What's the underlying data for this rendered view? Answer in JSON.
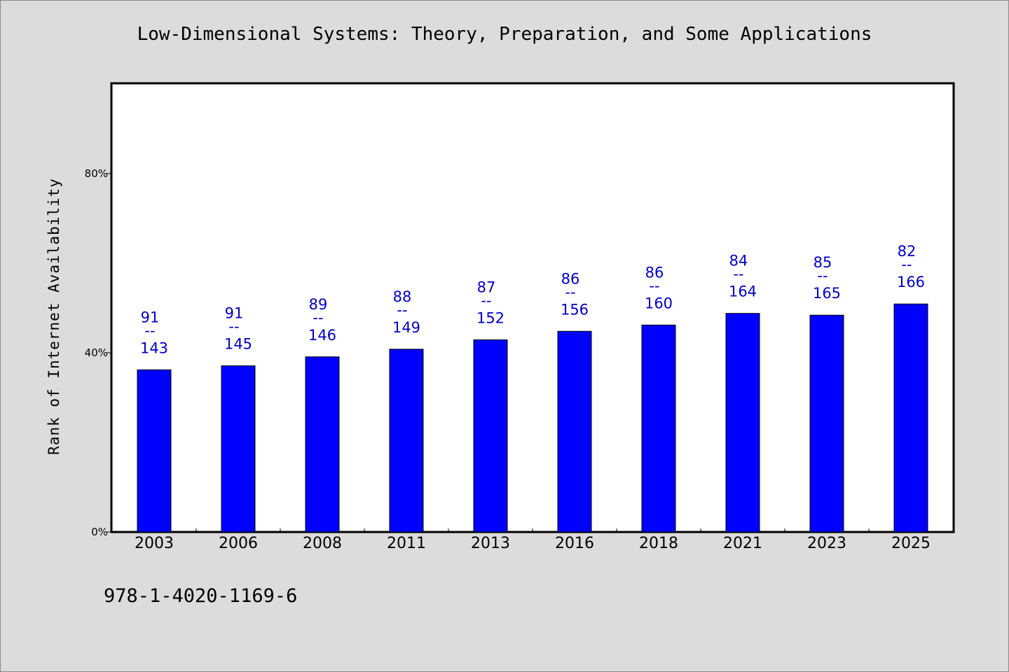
{
  "chart_data": {
    "type": "bar",
    "title": "Low-Dimensional Systems: Theory, Preparation, and Some Applications",
    "xlabel": "",
    "ylabel": "Rank of Internet Availability",
    "categories": [
      "2003",
      "2006",
      "2008",
      "2011",
      "2013",
      "2016",
      "2018",
      "2021",
      "2023",
      "2025"
    ],
    "values": [
      36.2,
      37.1,
      39.1,
      40.8,
      42.9,
      44.8,
      46.2,
      48.8,
      48.4,
      50.9
    ],
    "data_labels": [
      {
        "top": "91",
        "sep": "--",
        "bottom": "143"
      },
      {
        "top": "91",
        "sep": "--",
        "bottom": "145"
      },
      {
        "top": "89",
        "sep": "--",
        "bottom": "146"
      },
      {
        "top": "88",
        "sep": "--",
        "bottom": "149"
      },
      {
        "top": "87",
        "sep": "--",
        "bottom": "152"
      },
      {
        "top": "86",
        "sep": "--",
        "bottom": "156"
      },
      {
        "top": "86",
        "sep": "--",
        "bottom": "160"
      },
      {
        "top": "84",
        "sep": "--",
        "bottom": "164"
      },
      {
        "top": "85",
        "sep": "--",
        "bottom": "165"
      },
      {
        "top": "82",
        "sep": "--",
        "bottom": "166"
      }
    ],
    "yticks": [
      0,
      40,
      80
    ],
    "ytick_labels": [
      "0%",
      "40%",
      "80%"
    ],
    "ylim": [
      0,
      100
    ],
    "grid": false,
    "legend": "none",
    "bar_color": "#0000ff",
    "label_color": "#0000cc"
  },
  "footer": {
    "isbn": "978-1-4020-1169-6"
  }
}
